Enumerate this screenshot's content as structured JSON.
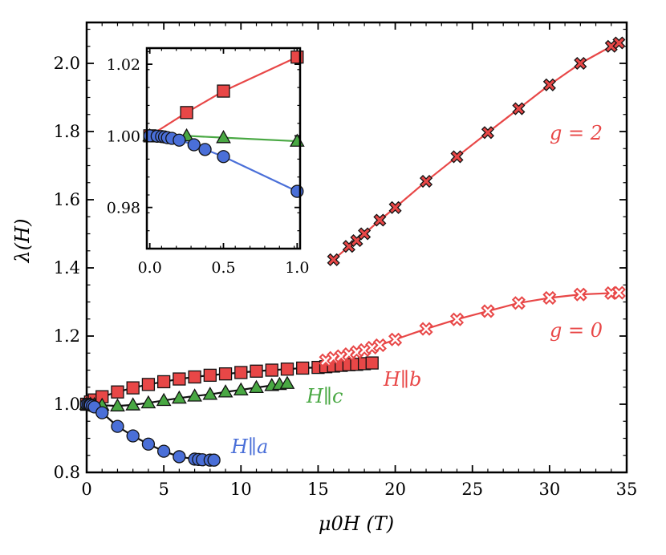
{
  "chart_data": [
    {
      "type": "scatter",
      "title": "",
      "xlabel": "μ0H (T)",
      "ylabel": "λ(H)",
      "xlim": [
        0,
        35
      ],
      "ylim": [
        0.8,
        2.12
      ],
      "xticks": [
        0,
        5,
        10,
        15,
        20,
        25,
        30,
        35
      ],
      "yticks": [
        0.8,
        1.0,
        1.2,
        1.4,
        1.6,
        1.8,
        2.0
      ],
      "xtick_labels": [
        "0",
        "5",
        "10",
        "15",
        "20",
        "25",
        "30",
        "35"
      ],
      "ytick_labels": [
        "0.8",
        "1.0",
        "1.2",
        "1.4",
        "1.6",
        "1.8",
        "2.0"
      ],
      "series": [
        {
          "name": "H||b",
          "label": "H∥b",
          "marker": "square",
          "color": "#e84747",
          "line_color": "#111111",
          "x": [
            0,
            0.25,
            0.5,
            1,
            2,
            3,
            4,
            5,
            6,
            7,
            8,
            9,
            10,
            11,
            12,
            13,
            14,
            15,
            15.5,
            16,
            16.5,
            17,
            17.5,
            18,
            18.5
          ],
          "y": [
            1.0,
            1.0065,
            1.0125,
            1.022,
            1.036,
            1.048,
            1.058,
            1.066,
            1.074,
            1.08,
            1.085,
            1.089,
            1.093,
            1.097,
            1.1,
            1.103,
            1.106,
            1.108,
            1.11,
            1.112,
            1.114,
            1.116,
            1.117,
            1.119,
            1.121
          ]
        },
        {
          "name": "H||c",
          "label": "H∥c",
          "marker": "triangle",
          "color": "#49a843",
          "line_color": "#111111",
          "x": [
            0,
            0.25,
            0.5,
            1,
            2,
            3,
            4,
            5,
            6,
            7,
            8,
            9,
            10,
            11,
            12,
            12.5,
            13
          ],
          "y": [
            1.0,
            1.0,
            0.999,
            0.997,
            0.995,
            0.998,
            1.004,
            1.011,
            1.018,
            1.024,
            1.029,
            1.036,
            1.042,
            1.049,
            1.055,
            1.058,
            1.061
          ]
        },
        {
          "name": "H||a",
          "label": "H∥a",
          "marker": "circle",
          "color": "#4a6fd8",
          "line_color": "#111111",
          "x": [
            0,
            0.1,
            0.2,
            0.25,
            0.375,
            0.5,
            1,
            2,
            3,
            4,
            5,
            6,
            7,
            7.25,
            7.5,
            8,
            8.25
          ],
          "y": [
            1.0,
            1.0,
            0.999,
            0.997,
            0.995,
            0.992,
            0.975,
            0.935,
            0.907,
            0.883,
            0.862,
            0.846,
            0.839,
            0.838,
            0.837,
            0.836,
            0.836
          ]
        },
        {
          "name": "g=0",
          "label": "g = 0",
          "marker": "x-open",
          "color": "#e84747",
          "line_color": "#e84747",
          "x": [
            15.5,
            16,
            16.5,
            17,
            17.5,
            18,
            18.5,
            19,
            20,
            22,
            24,
            26,
            28,
            30,
            32,
            34,
            34.5
          ],
          "y": [
            1.129,
            1.136,
            1.141,
            1.147,
            1.153,
            1.159,
            1.166,
            1.173,
            1.19,
            1.221,
            1.249,
            1.273,
            1.297,
            1.312,
            1.322,
            1.326,
            1.327
          ]
        },
        {
          "name": "g=2",
          "label": "g = 2",
          "marker": "x-filled",
          "color": "#e84747",
          "line_color": "#e84747",
          "x": [
            16,
            17,
            17.5,
            18,
            19,
            20,
            22,
            24,
            26,
            28,
            30,
            32,
            34,
            34.5
          ],
          "y": [
            1.424,
            1.463,
            1.48,
            1.5,
            1.54,
            1.577,
            1.654,
            1.726,
            1.797,
            1.867,
            1.937,
            2.0,
            2.05,
            2.06
          ]
        }
      ],
      "annotations": [
        {
          "text": "g = 2",
          "series": "g=2"
        },
        {
          "text": "g = 0",
          "series": "g=0"
        },
        {
          "text": "H∥b",
          "series": "H||b"
        },
        {
          "text": "H∥c",
          "series": "H||c"
        },
        {
          "text": "H∥a",
          "series": "H||a"
        }
      ]
    },
    {
      "type": "line",
      "title": "",
      "xlabel": "",
      "ylabel": "",
      "xlim": [
        -0.02,
        1.02
      ],
      "ylim": [
        0.9685,
        1.0245
      ],
      "xticks": [
        0,
        0.5,
        1.0
      ],
      "yticks": [
        0.98,
        1.0,
        1.02
      ],
      "xtick_labels": [
        "0.0",
        "0.5",
        "1.0"
      ],
      "ytick_labels": [
        "0.98",
        "1.00",
        "1.02"
      ],
      "series": [
        {
          "name": "H||b",
          "marker": "square",
          "color": "#e84747",
          "line_color": "#e84747",
          "x": [
            0,
            0.25,
            0.5,
            1.0
          ],
          "y": [
            1.0,
            1.0065,
            1.0125,
            1.022
          ]
        },
        {
          "name": "H||c",
          "marker": "triangle",
          "color": "#49a843",
          "line_color": "#49a843",
          "x": [
            0,
            0.25,
            0.5,
            1.0
          ],
          "y": [
            1.0,
            1.0,
            0.9995,
            0.9985
          ]
        },
        {
          "name": "H||a",
          "marker": "circle",
          "color": "#4a6fd8",
          "line_color": "#4a6fd8",
          "x": [
            0,
            0.05,
            0.08,
            0.1,
            0.12,
            0.15,
            0.2,
            0.3,
            0.375,
            0.5,
            1.0
          ],
          "y": [
            1.0,
            0.9999,
            0.9998,
            0.9997,
            0.9995,
            0.9993,
            0.9988,
            0.9975,
            0.9962,
            0.9942,
            0.9845
          ]
        }
      ]
    }
  ]
}
